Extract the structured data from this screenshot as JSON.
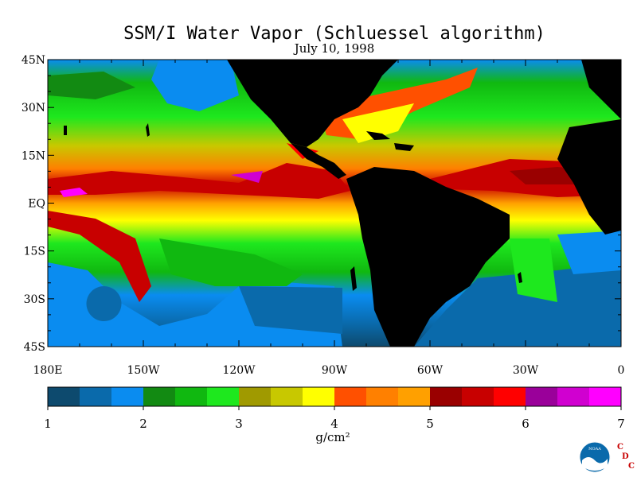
{
  "title": "SSM/I Water Vapor (Schluessel algorithm)",
  "subtitle": "July 10, 1998",
  "map": {
    "lat_labels": [
      "45N",
      "30N",
      "15N",
      "EQ",
      "15S",
      "30S",
      "45S"
    ],
    "lon_labels": [
      "180E",
      "150W",
      "120W",
      "90W",
      "60W",
      "30W",
      "0"
    ],
    "land_color": "#000000"
  },
  "colorbar": {
    "unit": "g/cm²",
    "ticks": [
      "1",
      "2",
      "3",
      "4",
      "5",
      "6",
      "7"
    ],
    "colors": [
      "#0d4a6e",
      "#0a6aab",
      "#0a8cf0",
      "#128a12",
      "#10b810",
      "#1ee81e",
      "#a09a00",
      "#c8c800",
      "#ffff00",
      "#ff5000",
      "#ff8000",
      "#ffa000",
      "#9a0000",
      "#c80000",
      "#ff0000",
      "#9a009a",
      "#d000d0",
      "#ff00ff"
    ]
  },
  "logo": {
    "name": "noaa-logo",
    "text": "NOAA",
    "letters": [
      "C",
      "D",
      "C"
    ]
  }
}
